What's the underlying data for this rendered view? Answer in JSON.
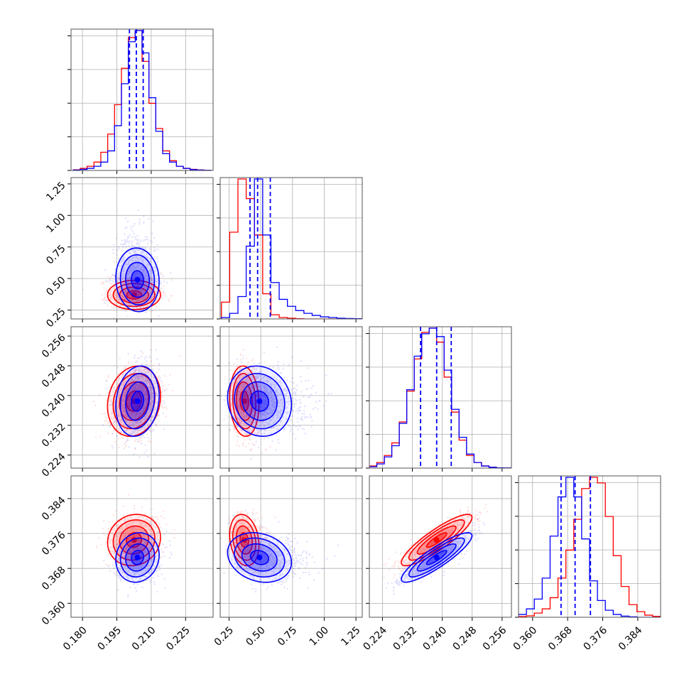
{
  "chart_data": {
    "type": "corner",
    "grid": true,
    "colors": {
      "red_series": "#ff0000",
      "blue_series": "#0000ff",
      "quantile_line": "#0000ff"
    },
    "parameters": [
      {
        "range": [
          0.175,
          0.237
        ],
        "ticks": [
          0.18,
          0.195,
          0.21,
          0.225
        ],
        "tick_labels": [
          "0.180",
          "0.195",
          "0.210",
          "0.225"
        ]
      },
      {
        "range": [
          0.18,
          1.3
        ],
        "ticks": [
          0.25,
          0.5,
          0.75,
          1.0,
          1.25
        ],
        "tick_labels": [
          "0.25",
          "0.50",
          "0.75",
          "1.00",
          "1.25"
        ]
      },
      {
        "range": [
          0.2205,
          0.2585
        ],
        "ticks": [
          0.224,
          0.232,
          0.24,
          0.248,
          0.256
        ],
        "tick_labels": [
          "0.224",
          "0.232",
          "0.240",
          "0.248",
          "0.256"
        ]
      },
      {
        "range": [
          0.3568,
          0.3892
        ],
        "ticks": [
          0.36,
          0.368,
          0.376,
          0.384
        ],
        "tick_labels": [
          "0.360",
          "0.368",
          "0.376",
          "0.384"
        ]
      }
    ],
    "series": [
      {
        "color": "#ff0000",
        "mean": [
          0.2025,
          0.37,
          0.2385,
          0.3745
        ],
        "std": [
          0.0055,
          0.055,
          0.0045,
          0.0028
        ],
        "corr": {
          "0-1": 0.0,
          "0-2": 0.15,
          "0-3": 0.1,
          "1-2": -0.1,
          "1-3": -0.2,
          "2-3": 0.88
        },
        "hist_lower": [
          0.362,
          0.2525,
          0.2205,
          0.3568
        ]
      },
      {
        "color": "#0000ff",
        "mean": [
          0.204,
          0.49,
          0.2385,
          0.3705
        ],
        "std": [
          0.0045,
          0.12,
          0.0045,
          0.0027
        ],
        "corr": {
          "0-1": -0.05,
          "0-2": 0.15,
          "0-3": 0.1,
          "1-2": -0.1,
          "1-3": -0.2,
          "2-3": 0.88
        },
        "hist_lower": [
          0.362,
          0.2525,
          0.2205,
          0.3568
        ]
      }
    ],
    "quantile_lines": [
      [
        0.2005,
        0.2035,
        0.2065
      ],
      [
        0.415,
        0.475,
        0.575
      ],
      [
        0.2342,
        0.2385,
        0.2424
      ],
      [
        0.3665,
        0.3697,
        0.3732
      ]
    ],
    "histograms": {
      "0": {
        "bins": [
          0.176,
          0.179,
          0.182,
          0.185,
          0.188,
          0.191,
          0.194,
          0.197,
          0.2,
          0.203,
          0.206,
          0.209,
          0.212,
          0.215,
          0.218,
          0.221,
          0.224,
          0.227,
          0.23,
          0.233,
          0.236
        ],
        "red": [
          0.5,
          1.5,
          3,
          6,
          13,
          26,
          47,
          73,
          95,
          100,
          78,
          48,
          30,
          14,
          7,
          3,
          1.5,
          0.8,
          0.4,
          0.2
        ],
        "blue": [
          0.3,
          0.8,
          1.5,
          3,
          6,
          14,
          32,
          62,
          92,
          100,
          84,
          52,
          28,
          12,
          6,
          3,
          1.5,
          0.6,
          0.3,
          0.1
        ]
      },
      "1": {
        "bins": [
          0.19,
          0.255,
          0.32,
          0.385,
          0.45,
          0.515,
          0.58,
          0.645,
          0.71,
          0.775,
          0.84,
          0.905,
          0.97,
          1.035,
          1.1,
          1.165,
          1.23,
          1.295
        ],
        "red": [
          12,
          62,
          100,
          86,
          60,
          18,
          3,
          1,
          0.5,
          0.2,
          0,
          0,
          0,
          0,
          0,
          0,
          0
        ],
        "blue": [
          1,
          4,
          16,
          52,
          100,
          60,
          26,
          14,
          9,
          6,
          4,
          2.5,
          1.5,
          1,
          0.5,
          0.3,
          0.2
        ]
      },
      "2": {
        "bins": [
          0.2205,
          0.2225,
          0.2245,
          0.2265,
          0.2285,
          0.2305,
          0.2325,
          0.2345,
          0.2365,
          0.2385,
          0.2405,
          0.2425,
          0.2445,
          0.2465,
          0.2485,
          0.2505,
          0.2525,
          0.2545,
          0.2565,
          0.2585
        ],
        "red": [
          1.5,
          4,
          9,
          18,
          33,
          55,
          78,
          97,
          100,
          90,
          65,
          40,
          20,
          9,
          4,
          1.5,
          0.6,
          0.2,
          0.1
        ],
        "blue": [
          1,
          3,
          8,
          16,
          32,
          56,
          80,
          96,
          100,
          94,
          70,
          42,
          22,
          10,
          4,
          1.5,
          0.6,
          0.2,
          0.1
        ]
      },
      "3": {
        "bins": [
          0.3568,
          0.3586,
          0.3604,
          0.3622,
          0.364,
          0.3658,
          0.3676,
          0.3694,
          0.3712,
          0.373,
          0.3748,
          0.3766,
          0.3784,
          0.3802,
          0.382,
          0.3838,
          0.3856,
          0.3874,
          0.3892
        ],
        "red": [
          0.5,
          1,
          3,
          6,
          14,
          28,
          48,
          70,
          92,
          100,
          96,
          72,
          44,
          22,
          9,
          4,
          1.5,
          0.6
        ],
        "blue": [
          2,
          6,
          13,
          28,
          58,
          86,
          100,
          86,
          56,
          26,
          12,
          5,
          2,
          0.8,
          0.3,
          0,
          0,
          0
        ]
      }
    }
  }
}
